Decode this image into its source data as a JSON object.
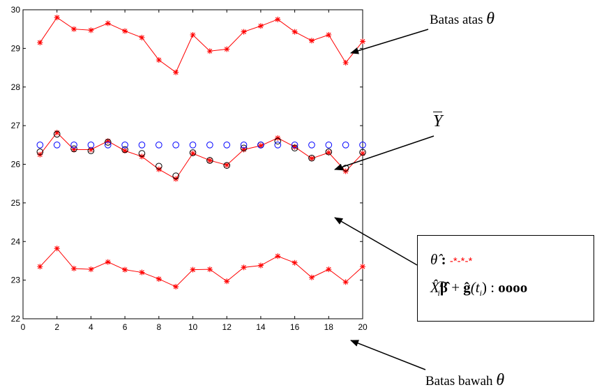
{
  "chart_data": {
    "type": "line",
    "x": [
      1,
      2,
      3,
      4,
      5,
      6,
      7,
      8,
      9,
      10,
      11,
      12,
      13,
      14,
      15,
      16,
      17,
      18,
      19,
      20
    ],
    "xlim": [
      0,
      20
    ],
    "ylim": [
      22,
      30
    ],
    "xticks": [
      "0",
      "2",
      "4",
      "6",
      "8",
      "10",
      "12",
      "14",
      "16",
      "18",
      "20"
    ],
    "yticks": [
      "22",
      "23",
      "24",
      "25",
      "26",
      "27",
      "28",
      "29",
      "30"
    ],
    "grid": false,
    "series": [
      {
        "id": "upper",
        "style": "red-star-line",
        "color": "#ff0000",
        "values": [
          29.15,
          29.8,
          29.5,
          29.47,
          29.65,
          29.45,
          29.28,
          28.7,
          28.38,
          29.35,
          28.93,
          28.98,
          29.43,
          29.58,
          29.75,
          29.43,
          29.2,
          29.35,
          28.63,
          29.18
        ]
      },
      {
        "id": "theta_hat",
        "style": "red-star-line",
        "color": "#ff0000",
        "values": [
          26.25,
          26.82,
          26.38,
          26.38,
          26.6,
          26.35,
          26.2,
          25.87,
          25.62,
          26.28,
          26.1,
          25.98,
          26.38,
          26.48,
          26.68,
          26.45,
          26.15,
          26.3,
          25.82,
          26.28
        ]
      },
      {
        "id": "fitted",
        "style": "black-circle",
        "color": "#000000",
        "values": [
          26.32,
          26.78,
          26.4,
          26.35,
          26.57,
          26.38,
          26.28,
          25.95,
          25.7,
          26.3,
          26.1,
          25.97,
          26.42,
          26.5,
          26.6,
          26.42,
          26.16,
          26.32,
          25.9,
          26.31
        ]
      },
      {
        "id": "ybar",
        "style": "blue-circle",
        "color": "#0000ff",
        "values": [
          26.5,
          26.5,
          26.5,
          26.5,
          26.5,
          26.5,
          26.5,
          26.5,
          26.5,
          26.5,
          26.5,
          26.5,
          26.5,
          26.5,
          26.5,
          26.5,
          26.5,
          26.5,
          26.5,
          26.5
        ]
      },
      {
        "id": "lower",
        "style": "red-star-line",
        "color": "#ff0000",
        "values": [
          23.35,
          23.82,
          23.3,
          23.28,
          23.47,
          23.27,
          23.2,
          23.03,
          22.83,
          23.27,
          23.28,
          22.97,
          23.33,
          23.38,
          23.62,
          23.45,
          23.07,
          23.28,
          22.95,
          23.35
        ]
      }
    ]
  },
  "annotations": {
    "upper_label": "Batas atas",
    "lower_label": "Batas bawah",
    "theta_symbol": "θ",
    "ybar_symbol": "Y"
  },
  "legend": {
    "line1_symbol": "θ̂",
    "line1_sep": " : ",
    "line1_marks": "-*-*-*",
    "line2_prefix": "X̂",
    "line2_sup": "T",
    "line2_sub": "i",
    "line2_beta": "β̂",
    "line2_plus": " + ",
    "line2_g": "ĝ",
    "line2_t": "(t",
    "line2_tsub": "i",
    "line2_close": ")",
    "line2_sep": " : ",
    "line2_marks": "oooo"
  }
}
